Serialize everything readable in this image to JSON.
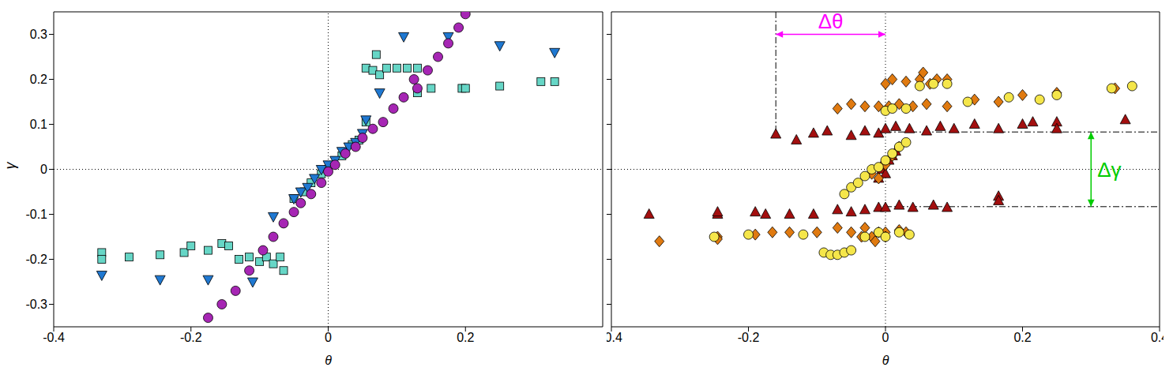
{
  "chart_data": [
    {
      "type": "scatter",
      "xlabel": "θ",
      "ylabel": "γ",
      "xlim": [
        -0.4,
        0.4
      ],
      "ylim": [
        -0.35,
        0.35
      ],
      "xticks": [
        -0.4,
        -0.2,
        0,
        0.2
      ],
      "yticks": [
        -0.3,
        -0.2,
        -0.1,
        0,
        0.1,
        0.2,
        0.3
      ],
      "series": [
        {
          "color": "#66d6c6",
          "marker": "square",
          "x": [
            -0.33,
            -0.33,
            -0.29,
            -0.245,
            -0.21,
            -0.2,
            -0.175,
            -0.155,
            -0.145,
            -0.13,
            -0.115,
            -0.1,
            -0.09,
            -0.08,
            -0.07,
            -0.065,
            -0.05,
            -0.035,
            -0.025,
            -0.01,
            0,
            0.02,
            0.035,
            0.045,
            0.055,
            0.055,
            0.065,
            0.07,
            0.075,
            0.085,
            0.1,
            0.115,
            0.13,
            0.13,
            0.15,
            0.195,
            0.2,
            0.25,
            0.31,
            0.33
          ],
          "values": [
            -0.185,
            -0.2,
            -0.195,
            -0.19,
            -0.185,
            -0.17,
            -0.18,
            -0.165,
            -0.17,
            -0.2,
            -0.195,
            -0.205,
            -0.195,
            -0.21,
            -0.195,
            -0.225,
            -0.065,
            -0.05,
            -0.03,
            -0.01,
            0,
            0.03,
            0.055,
            0.065,
            0.105,
            0.225,
            0.22,
            0.255,
            0.21,
            0.225,
            0.225,
            0.225,
            0.225,
            0.17,
            0.18,
            0.18,
            0.18,
            0.185,
            0.195,
            0.195
          ]
        },
        {
          "color": "#1f78d1",
          "marker": "triangle-down",
          "x": [
            -0.33,
            -0.245,
            -0.175,
            -0.11,
            -0.08,
            -0.05,
            -0.04,
            -0.03,
            -0.02,
            -0.01,
            0,
            0.01,
            0.02,
            0.03,
            0.04,
            0.05,
            0.055,
            0.075,
            0.11,
            0.175,
            0.25,
            0.33
          ],
          "values": [
            -0.235,
            -0.245,
            -0.245,
            -0.25,
            -0.105,
            -0.065,
            -0.05,
            -0.04,
            -0.02,
            0,
            0.01,
            0.02,
            0.04,
            0.05,
            0.06,
            0.08,
            0.11,
            0.17,
            0.295,
            0.295,
            0.275,
            0.26
          ]
        },
        {
          "color": "#a626b4",
          "marker": "circle",
          "x": [
            -0.175,
            -0.155,
            -0.135,
            -0.115,
            -0.095,
            -0.08,
            -0.065,
            -0.05,
            -0.04,
            -0.025,
            -0.01,
            0,
            0.01,
            0.025,
            0.04,
            0.05,
            0.065,
            0.08,
            0.095,
            0.11,
            0.125,
            0.13,
            0.145,
            0.16,
            0.175,
            0.19,
            0.2
          ],
          "values": [
            -0.33,
            -0.3,
            -0.27,
            -0.225,
            -0.18,
            -0.15,
            -0.12,
            -0.095,
            -0.075,
            -0.055,
            -0.03,
            -0.005,
            0.01,
            0.035,
            0.05,
            0.07,
            0.09,
            0.105,
            0.135,
            0.16,
            0.2,
            0.18,
            0.22,
            0.25,
            0.28,
            0.315,
            0.345
          ]
        }
      ]
    },
    {
      "type": "scatter",
      "xlabel": "θ",
      "xlim": [
        -0.4,
        0.4
      ],
      "ylim": [
        -0.35,
        0.35
      ],
      "xticks": [
        -0.4,
        -0.2,
        0,
        0.2,
        0.4
      ],
      "yticks": [
        -0.3,
        -0.2,
        -0.1,
        0,
        0.1,
        0.2,
        0.3
      ],
      "tick_labels": "x",
      "annotations": [
        {
          "text": "Δθ",
          "color": "#ff00ff",
          "x": [
            -0.16,
            0
          ],
          "y": 0.3
        },
        {
          "text": "Δγ",
          "color": "#00cc00",
          "x": 0.3,
          "y": [
            -0.083,
            0.083
          ]
        }
      ],
      "series": [
        {
          "color": "#a30f0f",
          "marker": "triangle",
          "x": [
            -0.16,
            -0.13,
            -0.105,
            -0.085,
            -0.05,
            -0.03,
            -0.01,
            0,
            0.015,
            0.035,
            0.06,
            0.08,
            0.1,
            0.13,
            0.165,
            0.2,
            0.215,
            0.25,
            0.25,
            0.35,
            -0.005,
            0.005,
            0.01,
            0,
            -0.01,
            0.015,
            -0.005,
            -0.345,
            -0.245,
            -0.245,
            -0.19,
            -0.175,
            -0.14,
            -0.105,
            -0.07,
            -0.05,
            -0.01,
            0,
            0.02,
            0.04,
            0.07,
            0.09,
            0.165,
            0.165,
            -0.03
          ],
          "values": [
            0.078,
            0.065,
            0.08,
            0.085,
            0.075,
            0.085,
            0.08,
            0.09,
            0.095,
            0.09,
            0.085,
            0.095,
            0.09,
            0.1,
            0.09,
            0.1,
            0.105,
            0.105,
            0.09,
            0.11,
            0,
            0.02,
            0.03,
            -0.01,
            -0.02,
            0.04,
            0.01,
            -0.1,
            -0.1,
            -0.095,
            -0.095,
            -0.1,
            -0.1,
            -0.1,
            -0.09,
            -0.095,
            -0.085,
            -0.085,
            -0.08,
            -0.085,
            -0.08,
            -0.085,
            -0.06,
            -0.07,
            -0.09
          ]
        },
        {
          "color": "#e07a10",
          "marker": "diamond",
          "x": [
            0,
            0.01,
            0.03,
            0.05,
            0.055,
            0.065,
            0.075,
            0.09,
            -0.07,
            -0.05,
            -0.03,
            -0.01,
            0.005,
            0.02,
            0.04,
            0.06,
            0.09,
            0.13,
            0.165,
            0.2,
            0.25,
            0.335,
            -0.02,
            0,
            0.01,
            0.02,
            -0.01,
            -0.33,
            -0.245,
            -0.245,
            -0.19,
            -0.165,
            -0.14,
            -0.1,
            -0.07,
            -0.05,
            -0.03,
            -0.01,
            0,
            0.02,
            -0.02,
            0,
            -0.035,
            -0.015,
            0.03
          ],
          "values": [
            0.19,
            0.2,
            0.195,
            0.2,
            0.215,
            0.19,
            0.2,
            0.2,
            0.135,
            0.145,
            0.14,
            0.14,
            0.14,
            0.145,
            0.14,
            0.145,
            0.14,
            0.155,
            0.15,
            0.165,
            0.17,
            0.18,
            -0.01,
            0.01,
            0.03,
            0.05,
            -0.02,
            -0.16,
            -0.15,
            -0.155,
            -0.145,
            -0.14,
            -0.14,
            -0.14,
            -0.13,
            -0.14,
            -0.13,
            -0.14,
            -0.14,
            -0.135,
            -0.15,
            -0.15,
            -0.15,
            -0.16,
            -0.14
          ]
        },
        {
          "color": "#f5e64a",
          "marker": "circle",
          "x": [
            0,
            0.01,
            0.03,
            0.05,
            0.07,
            0.09,
            0.12,
            0.18,
            0.225,
            0.25,
            0.36,
            0.33,
            -0.06,
            -0.05,
            -0.04,
            -0.03,
            -0.02,
            -0.01,
            0,
            0.01,
            0.02,
            0.03,
            -0.12,
            -0.09,
            -0.08,
            -0.07,
            -0.06,
            -0.05,
            -0.03,
            -0.01,
            0,
            0.02,
            0.035,
            -0.2,
            -0.25
          ],
          "values": [
            0.13,
            0.135,
            0.135,
            0.185,
            0.19,
            0.19,
            0.15,
            0.16,
            0.155,
            0.165,
            0.185,
            0.18,
            -0.055,
            -0.04,
            -0.03,
            -0.015,
            0,
            0.005,
            0.02,
            0.035,
            0.05,
            0.06,
            -0.145,
            -0.185,
            -0.19,
            -0.19,
            -0.185,
            -0.18,
            -0.15,
            -0.14,
            -0.15,
            -0.14,
            -0.145,
            -0.145,
            -0.15
          ]
        }
      ]
    }
  ]
}
